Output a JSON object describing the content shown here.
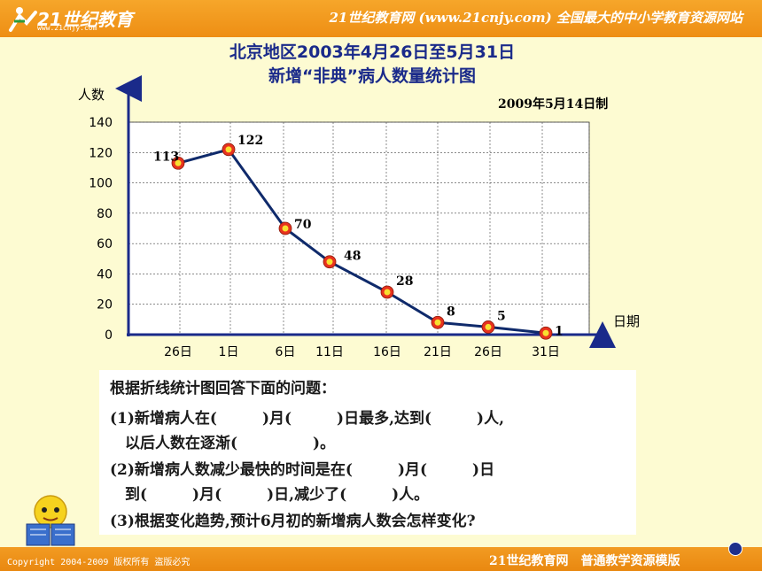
{
  "header": {
    "logo_text": "21世纪教育",
    "logo_sub": "www.21cnjy.com",
    "banner": "21世纪教育网 (www.21cnjy.com) 全国最大的中小学教育资源网站"
  },
  "chart_data": {
    "type": "line",
    "title_line1": "北京地区2003年4月26日至5月31日",
    "title_line2": "新增“非典”病人数量统计图",
    "note": "2009年5月14日制",
    "ylabel": "人数",
    "xlabel": "日期",
    "ylim": [
      0,
      140
    ],
    "yticks": [
      "0",
      "20",
      "40",
      "60",
      "80",
      "100",
      "120",
      "140"
    ],
    "categories": [
      "26日",
      "1日",
      "6日",
      "11日",
      "16日",
      "21日",
      "26日",
      "31日"
    ],
    "values": [
      113,
      122,
      70,
      48,
      28,
      8,
      5,
      1
    ],
    "line_color": "#0F2A6B",
    "marker_color": "#E8321E",
    "marker_center": "#F8E030",
    "grid": true
  },
  "questions": {
    "intro": "根据折线统计图回答下面的问题：",
    "q1a": "(1)新增病人在(　　　)月(　　　)日最多,达到(　　　)人,",
    "q1b": "　以后人数在逐渐(　　　　　)。",
    "q2a": "(2)新增病人数减少最快的时间是在(　　　)月(　　　)日",
    "q2b": "　到(　　　)月(　　　)日,减少了(　　　)人。",
    "q3": "(3)根据变化趋势,预计6月初的新增病人数会怎样变化?"
  },
  "footer": {
    "copyright": "Copyright 2004-2009 版权所有 盗版必究",
    "brand": "21世纪教育网　普通教学资源模版"
  },
  "colors": {
    "background": "#FDFBD2",
    "bar": "#F0951C",
    "title": "#1A2A8A"
  }
}
